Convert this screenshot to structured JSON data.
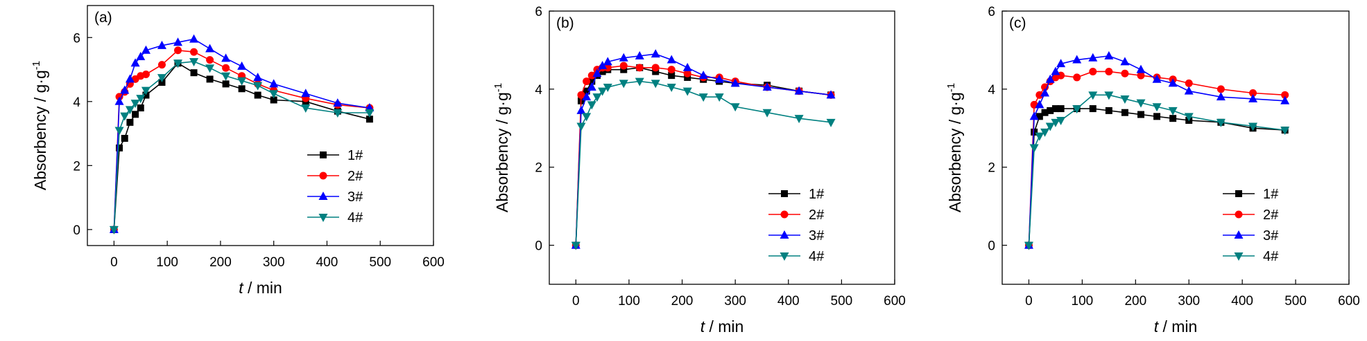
{
  "chart_data": [
    {
      "type": "line",
      "panel_label": "(a)",
      "xlabel_italic": "t",
      "xlabel_rest": " / min",
      "ylabel_main": "Absorbency / g·g",
      "ylabel_sup": "-1",
      "xlim": [
        -50,
        600
      ],
      "ylim": [
        -0.5,
        7.0
      ],
      "xticks": [
        "0",
        "100",
        "200",
        "300",
        "400",
        "500",
        "600"
      ],
      "yticks": [
        "0",
        "2",
        "4",
        "6"
      ],
      "legend_position": "bottom-right",
      "series": [
        {
          "name": "1#",
          "x": [
            0,
            10,
            20,
            30,
            40,
            50,
            60,
            90,
            120,
            150,
            180,
            210,
            240,
            270,
            300,
            360,
            420,
            480
          ],
          "y": [
            0,
            2.55,
            2.85,
            3.35,
            3.6,
            3.8,
            4.2,
            4.6,
            5.2,
            4.9,
            4.7,
            4.55,
            4.4,
            4.2,
            4.05,
            4.0,
            3.7,
            3.45
          ]
        },
        {
          "name": "2#",
          "x": [
            0,
            10,
            20,
            30,
            40,
            50,
            60,
            90,
            120,
            150,
            180,
            210,
            240,
            270,
            300,
            360,
            420,
            480
          ],
          "y": [
            0,
            4.15,
            4.3,
            4.55,
            4.7,
            4.8,
            4.85,
            5.15,
            5.6,
            5.55,
            5.3,
            5.05,
            4.8,
            4.55,
            4.35,
            4.1,
            3.9,
            3.8
          ]
        },
        {
          "name": "3#",
          "x": [
            0,
            10,
            20,
            30,
            40,
            50,
            60,
            90,
            120,
            150,
            180,
            210,
            240,
            270,
            300,
            360,
            420,
            480
          ],
          "y": [
            0,
            4.0,
            4.35,
            4.7,
            5.2,
            5.4,
            5.6,
            5.75,
            5.85,
            5.95,
            5.65,
            5.35,
            5.1,
            4.75,
            4.55,
            4.25,
            3.95,
            3.8
          ]
        },
        {
          "name": "4#",
          "x": [
            0,
            10,
            20,
            30,
            40,
            50,
            60,
            90,
            120,
            150,
            180,
            210,
            240,
            270,
            300,
            360,
            420,
            480
          ],
          "y": [
            0,
            3.1,
            3.55,
            3.75,
            3.95,
            4.1,
            4.35,
            4.75,
            5.2,
            5.25,
            5.05,
            4.8,
            4.65,
            4.5,
            4.25,
            3.8,
            3.65,
            3.65
          ]
        }
      ]
    },
    {
      "type": "line",
      "panel_label": "(b)",
      "xlabel_italic": "t",
      "xlabel_rest": " / min",
      "ylabel_main": "Absorbency / g·g",
      "ylabel_sup": "-1",
      "xlim": [
        -50,
        600
      ],
      "ylim": [
        -1,
        6
      ],
      "xticks": [
        "0",
        "100",
        "200",
        "300",
        "400",
        "500",
        "600"
      ],
      "yticks": [
        "0",
        "2",
        "4",
        "6"
      ],
      "legend_position": "bottom-right",
      "series": [
        {
          "name": "1#",
          "x": [
            0,
            10,
            20,
            30,
            40,
            50,
            60,
            90,
            120,
            150,
            180,
            210,
            240,
            270,
            300,
            360,
            420,
            480
          ],
          "y": [
            0,
            3.7,
            3.95,
            4.2,
            4.35,
            4.45,
            4.5,
            4.5,
            4.55,
            4.45,
            4.35,
            4.3,
            4.25,
            4.2,
            4.15,
            4.1,
            3.95,
            3.85
          ]
        },
        {
          "name": "2#",
          "x": [
            0,
            10,
            20,
            30,
            40,
            50,
            60,
            90,
            120,
            150,
            180,
            210,
            240,
            270,
            300,
            360,
            420,
            480
          ],
          "y": [
            0,
            3.85,
            4.2,
            4.35,
            4.5,
            4.55,
            4.55,
            4.6,
            4.55,
            4.55,
            4.5,
            4.4,
            4.3,
            4.3,
            4.2,
            4.05,
            3.95,
            3.85
          ]
        },
        {
          "name": "3#",
          "x": [
            0,
            10,
            20,
            30,
            40,
            50,
            60,
            90,
            120,
            150,
            180,
            210,
            240,
            270,
            300,
            360,
            420,
            480
          ],
          "y": [
            0,
            3.45,
            3.8,
            4.05,
            4.4,
            4.6,
            4.7,
            4.8,
            4.85,
            4.9,
            4.75,
            4.55,
            4.35,
            4.25,
            4.15,
            4.05,
            3.95,
            3.85
          ]
        },
        {
          "name": "4#",
          "x": [
            0,
            10,
            20,
            30,
            40,
            50,
            60,
            90,
            120,
            150,
            180,
            210,
            240,
            270,
            300,
            360,
            420,
            480
          ],
          "y": [
            0,
            3.05,
            3.3,
            3.6,
            3.8,
            3.95,
            4.05,
            4.15,
            4.2,
            4.15,
            4.05,
            3.95,
            3.8,
            3.8,
            3.55,
            3.4,
            3.25,
            3.15
          ]
        }
      ]
    },
    {
      "type": "line",
      "panel_label": "(c)",
      "xlabel_italic": "t",
      "xlabel_rest": " / min",
      "ylabel_main": "Absorbency / g·g",
      "ylabel_sup": "-1",
      "xlim": [
        -50,
        600
      ],
      "ylim": [
        -1,
        6
      ],
      "xticks": [
        "0",
        "100",
        "200",
        "300",
        "400",
        "500",
        "600"
      ],
      "yticks": [
        "0",
        "2",
        "4",
        "6"
      ],
      "legend_position": "bottom-right",
      "series": [
        {
          "name": "1#",
          "x": [
            0,
            10,
            20,
            30,
            40,
            50,
            60,
            90,
            120,
            150,
            180,
            210,
            240,
            270,
            300,
            360,
            420,
            480
          ],
          "y": [
            0,
            2.9,
            3.3,
            3.4,
            3.45,
            3.5,
            3.5,
            3.5,
            3.5,
            3.45,
            3.4,
            3.35,
            3.3,
            3.25,
            3.2,
            3.15,
            3.0,
            2.95
          ]
        },
        {
          "name": "2#",
          "x": [
            0,
            10,
            20,
            30,
            40,
            50,
            60,
            90,
            120,
            150,
            180,
            210,
            240,
            270,
            300,
            360,
            420,
            480
          ],
          "y": [
            0,
            3.6,
            3.85,
            4.05,
            4.2,
            4.3,
            4.35,
            4.3,
            4.45,
            4.45,
            4.4,
            4.35,
            4.3,
            4.25,
            4.15,
            4.0,
            3.9,
            3.85
          ]
        },
        {
          "name": "3#",
          "x": [
            0,
            10,
            20,
            30,
            40,
            50,
            60,
            90,
            120,
            150,
            180,
            210,
            240,
            270,
            300,
            360,
            420,
            480
          ],
          "y": [
            0,
            3.3,
            3.6,
            3.9,
            4.25,
            4.45,
            4.65,
            4.75,
            4.8,
            4.85,
            4.7,
            4.5,
            4.25,
            4.15,
            3.95,
            3.8,
            3.75,
            3.7
          ]
        },
        {
          "name": "4#",
          "x": [
            0,
            10,
            20,
            30,
            40,
            50,
            60,
            90,
            120,
            150,
            180,
            210,
            240,
            270,
            300,
            360,
            420,
            480
          ],
          "y": [
            0,
            2.5,
            2.8,
            2.9,
            3.05,
            3.15,
            3.2,
            3.5,
            3.85,
            3.85,
            3.75,
            3.65,
            3.55,
            3.45,
            3.3,
            3.15,
            3.05,
            2.95
          ]
        }
      ]
    }
  ],
  "series_styles": [
    {
      "color": "#000000",
      "marker": "square"
    },
    {
      "color": "#ff0000",
      "marker": "circle"
    },
    {
      "color": "#0000ff",
      "marker": "triangle-up"
    },
    {
      "color": "#008080",
      "marker": "triangle-down"
    }
  ]
}
